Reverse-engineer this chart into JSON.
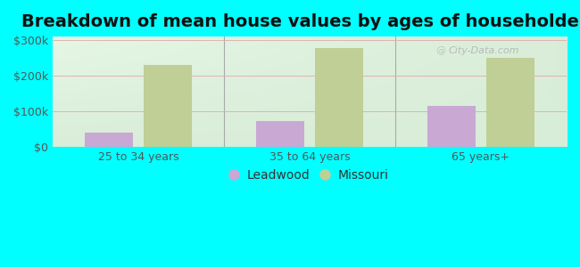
{
  "title": "Breakdown of mean house values by ages of householders",
  "categories": [
    "25 to 34 years",
    "35 to 64 years",
    "65 years+"
  ],
  "leadwood_values": [
    40000,
    72000,
    115000
  ],
  "missouri_values": [
    230000,
    278000,
    250000
  ],
  "ylim": [
    0,
    310000
  ],
  "yticks": [
    0,
    100000,
    200000,
    300000
  ],
  "ytick_labels": [
    "$0",
    "$100k",
    "$200k",
    "$300k"
  ],
  "leadwood_color": "#c9a8d4",
  "missouri_color": "#bfcf96",
  "background_color": "#00ffff",
  "title_fontsize": 14,
  "legend_labels": [
    "Leadwood",
    "Missouri"
  ],
  "bar_width": 0.28,
  "watermark": "City-Data.com"
}
